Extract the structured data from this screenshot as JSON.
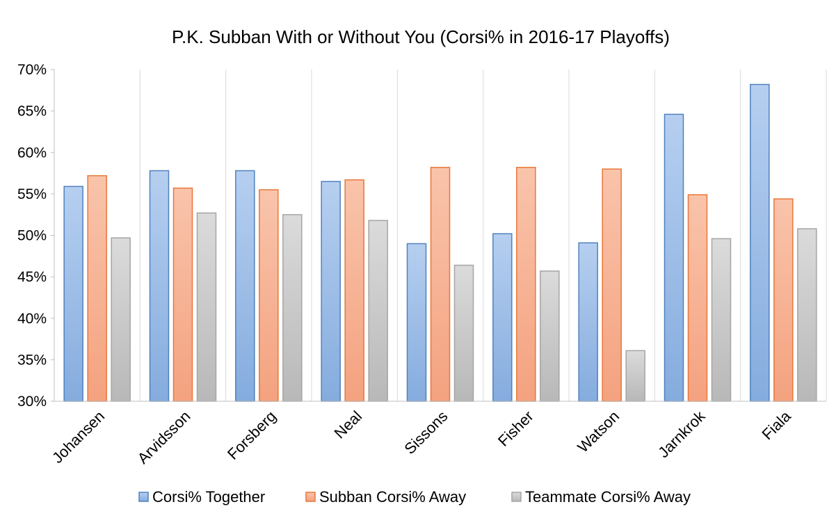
{
  "chart_data": {
    "type": "bar",
    "title": "P.K. Subban With or Without You (Corsi% in 2016-17 Playoffs)",
    "xlabel": "",
    "ylabel": "",
    "ylim": [
      0.3,
      0.7
    ],
    "y_tick_step": 0.05,
    "y_tick_format": "percent",
    "grid": "vertical category separators",
    "legend_position": "bottom",
    "categories": [
      "Johansen",
      "Arvidsson",
      "Forsberg",
      "Neal",
      "Sissons",
      "Fisher",
      "Watson",
      "Jarnkrok",
      "Fiala"
    ],
    "series": [
      {
        "name": "Corsi% Together",
        "color_top": "#b6cff0",
        "color_bottom": "#85acde",
        "stroke": "#4f81bd",
        "values": [
          0.559,
          0.578,
          0.578,
          0.565,
          0.49,
          0.502,
          0.491,
          0.646,
          0.682
        ]
      },
      {
        "name": "Subban Corsi% Away",
        "color_top": "#f9c4ab",
        "color_bottom": "#f4a27f",
        "stroke": "#e8773a",
        "values": [
          0.572,
          0.557,
          0.555,
          0.567,
          0.582,
          0.582,
          0.58,
          0.549,
          0.544
        ]
      },
      {
        "name": "Teammate Corsi% Away",
        "color_top": "#dbdbdb",
        "color_bottom": "#b8b8b8",
        "stroke": "#a5a5a5",
        "values": [
          0.497,
          0.527,
          0.525,
          0.518,
          0.464,
          0.457,
          0.361,
          0.496,
          0.508
        ]
      }
    ]
  }
}
